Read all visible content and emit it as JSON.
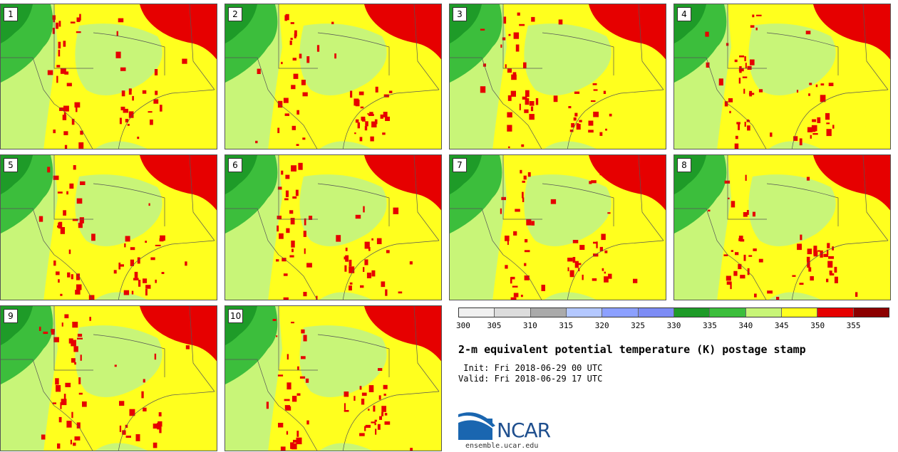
{
  "panels": [
    {
      "label": "1"
    },
    {
      "label": "2"
    },
    {
      "label": "3"
    },
    {
      "label": "4"
    },
    {
      "label": "5"
    },
    {
      "label": "6"
    },
    {
      "label": "7"
    },
    {
      "label": "8"
    },
    {
      "label": "9"
    },
    {
      "label": "10"
    }
  ],
  "colorbar": {
    "colors": [
      "#f0f0f0",
      "#dcdcdc",
      "#aaaaaa",
      "#b4c8ff",
      "#8ca0ff",
      "#7d8cf5",
      "#1e9b28",
      "#3cbe3c",
      "#c8f578",
      "#ffff1e",
      "#e60000",
      "#8c0000"
    ],
    "ticks": [
      "300",
      "305",
      "310",
      "315",
      "320",
      "325",
      "330",
      "335",
      "340",
      "345",
      "350",
      "355"
    ]
  },
  "title": "2-m equivalent potential temperature (K) postage stamp",
  "init": " Init: Fri 2018-06-29 00 UTC",
  "valid": "Valid: Fri 2018-06-29 17 UTC",
  "logo": {
    "name": "NCAR",
    "url": "ensemble.ucar.edu"
  }
}
